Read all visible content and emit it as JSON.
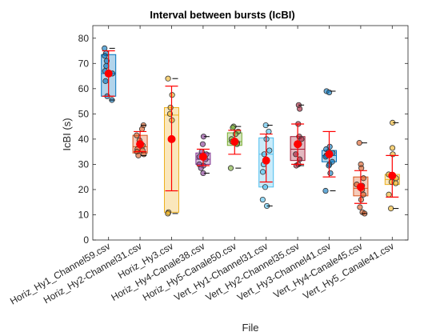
{
  "chart_data": {
    "type": "box",
    "title": "Interval between bursts (IcBI)",
    "xlabel": "File",
    "ylabel": "IcBI (s)",
    "ylim": [
      0,
      85
    ],
    "yticks": [
      0,
      10,
      20,
      30,
      40,
      50,
      60,
      70,
      80
    ],
    "grid": false,
    "categories": [
      "Horiz_Hy1_Channel59.csv",
      "Horiz_Hy2-Channel31.csv",
      "Horiz_Hy3.csv",
      "Horiz_Hy4-Canale38.csv",
      "Horiz_Hy5-Canale50.csv",
      "Vert_Hy1-Channel31.csv",
      "Vert_Hy2-Channel35.csv",
      "Vert_Hy3-Channel41.csv",
      "Vert_Hy4-Canale45.csv",
      "Vert_Hy5_Canale41.csv"
    ],
    "boxes": [
      {
        "color": "#0072BD",
        "q1": 57,
        "median": 66,
        "q3": 73.5,
        "mean": 66,
        "err_low": 57,
        "err_high": 75,
        "points": [
          76,
          74,
          73,
          71,
          69,
          67,
          66,
          63,
          57,
          55.5
        ]
      },
      {
        "color": "#D95319",
        "q1": 34.5,
        "median": 37,
        "q3": 41.5,
        "mean": 38,
        "err_low": 35,
        "err_high": 43,
        "points": [
          45.5,
          44,
          41.5,
          39.5,
          37.5,
          36,
          35.5,
          35,
          34,
          33.5
        ]
      },
      {
        "color": "#EDB120",
        "q1": 11,
        "median": 49.5,
        "q3": 52.5,
        "mean": 40,
        "err_low": 19.5,
        "err_high": 61,
        "points": [
          64,
          57.5,
          52.5,
          50,
          47.5,
          11,
          10.5
        ]
      },
      {
        "color": "#7E2F8E",
        "q1": 30,
        "median": 32,
        "q3": 34.5,
        "mean": 33,
        "err_low": 29.5,
        "err_high": 36,
        "points": [
          41,
          38,
          35,
          34,
          33,
          32,
          30,
          29.5,
          28.5,
          26.5
        ]
      },
      {
        "color": "#77AC30",
        "q1": 37.5,
        "median": 39,
        "q3": 42.5,
        "mean": 39,
        "err_low": 34,
        "err_high": 43.5,
        "points": [
          45,
          44.5,
          43,
          42,
          40,
          39,
          38.5,
          38,
          28.5
        ]
      },
      {
        "color": "#4DBEEE",
        "q1": 21,
        "median": 34,
        "q3": 40.5,
        "mean": 31.5,
        "err_low": 23,
        "err_high": 42,
        "points": [
          45.5,
          43,
          40,
          35.5,
          34,
          30,
          27,
          21,
          16,
          13.5
        ]
      },
      {
        "color": "#A2142F",
        "q1": 31.5,
        "median": 36,
        "q3": 41,
        "mean": 38,
        "err_low": 30,
        "err_high": 46,
        "points": [
          53.5,
          52,
          46,
          41,
          40,
          38,
          34,
          32,
          30,
          29.5
        ]
      },
      {
        "color": "#0072BD",
        "q1": 31,
        "median": 33.5,
        "q3": 35.5,
        "mean": 34,
        "err_low": 25,
        "err_high": 43,
        "points": [
          59,
          58.5,
          37,
          36,
          35,
          34.5,
          33.5,
          33,
          31,
          30,
          29.5,
          26.5,
          19.5
        ]
      },
      {
        "color": "#D95319",
        "q1": 17.5,
        "median": 20.5,
        "q3": 25,
        "mean": 21,
        "err_low": 14.5,
        "err_high": 27.5,
        "points": [
          38.5,
          30,
          28.5,
          24.5,
          22,
          21.5,
          20,
          18,
          16,
          13,
          11,
          10.5
        ]
      },
      {
        "color": "#EDB120",
        "q1": 22,
        "median": 24,
        "q3": 26,
        "mean": 25.5,
        "err_low": 17,
        "err_high": 33.5,
        "points": [
          46.5,
          36.5,
          34,
          26,
          25,
          24.5,
          23,
          22.5,
          18,
          12.5
        ]
      }
    ],
    "mean_color": "#FF0000",
    "errorbar_color": "#FF0000"
  }
}
